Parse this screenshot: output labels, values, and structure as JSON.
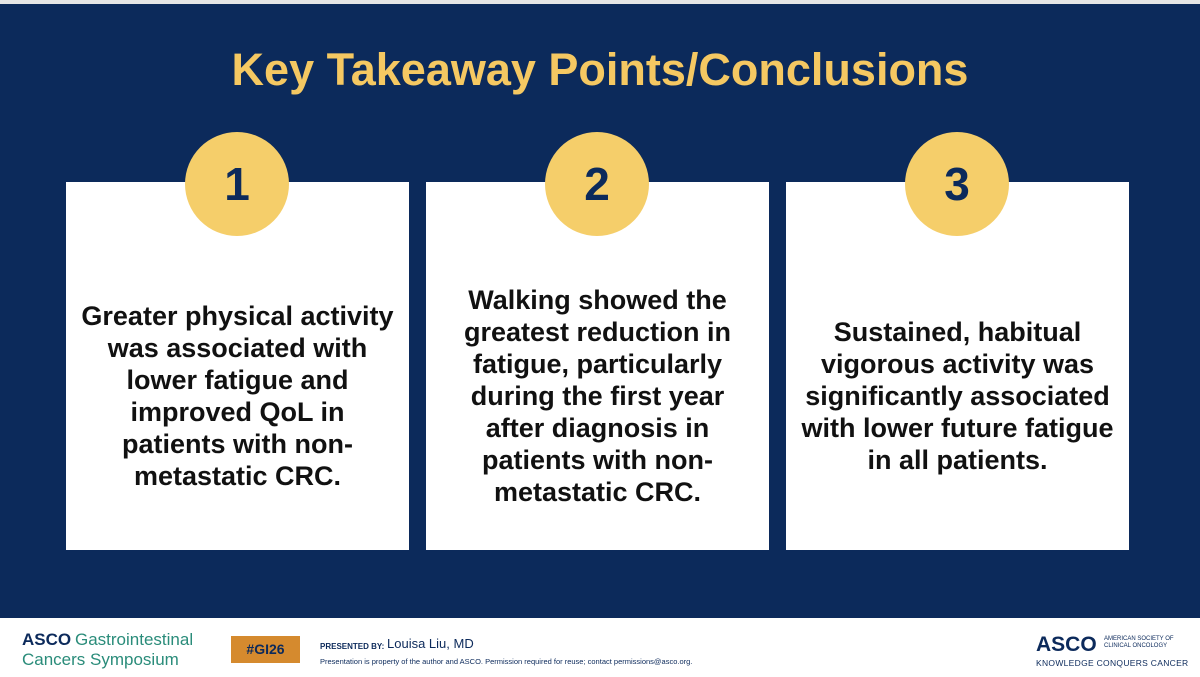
{
  "header": {
    "title": "Key Takeaway Points/Conclusions"
  },
  "cards": [
    {
      "number": "1",
      "text": "Greater physical activity was associated with lower fatigue and improved QoL in patients with non-metastatic CRC."
    },
    {
      "number": "2",
      "text": "Walking showed the greatest reduction in fatigue, particularly during the first year after diagnosis in patients with non-metastatic CRC."
    },
    {
      "number": "3",
      "text": "Sustained, habitual vigorous activity was significantly associated with lower future fatigue in all patients."
    }
  ],
  "footer": {
    "logo_brand": "ASCO",
    "logo_line1": "Gastrointestinal",
    "logo_line2": "Cancers Symposium",
    "hashtag": "#GI26",
    "presented_by": "PRESENTED BY:",
    "presenter": "Louisa Liu, MD",
    "disclaimer": "Presentation is property of the author and ASCO. Permission required for reuse; contact permissions@asco.org.",
    "right_brand": "ASCO",
    "right_society": "AMERICAN SOCIETY OF CLINICAL ONCOLOGY",
    "right_tagline": "KNOWLEDGE CONQUERS CANCER"
  }
}
